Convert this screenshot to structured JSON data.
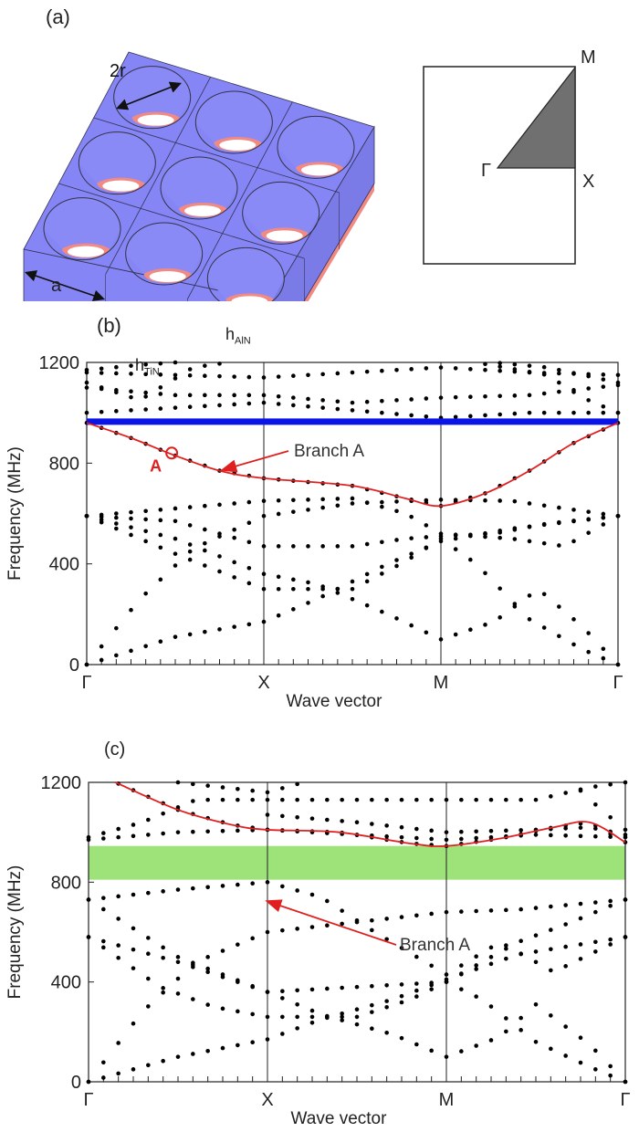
{
  "panel_labels": {
    "a": "(a)",
    "b": "(b)",
    "c": "(c)"
  },
  "schematic": {
    "dim_2r": "2r",
    "dim_a": "a",
    "dim_h_tin": "h",
    "dim_h_tin_sub": "TiN",
    "dim_h_aln": "h",
    "dim_h_aln_sub": "AlN",
    "colors": {
      "aln": "#8585f5",
      "tin": "#f08a82"
    }
  },
  "brillouin_zone": {
    "gamma": "Γ",
    "x": "X",
    "m": "M",
    "fill": "#707070"
  },
  "chart_data": [
    {
      "id": "b",
      "type": "scatter",
      "xlabel": "Wave vector",
      "ylabel": "Frequency (MHz)",
      "ylim": [
        0,
        1200
      ],
      "yticks": [
        0,
        400,
        800,
        1200
      ],
      "xticks": [
        "Γ",
        "X",
        "M",
        "Γ"
      ],
      "x_path_points": [
        0,
        1,
        2,
        3
      ],
      "bandgap_line": {
        "frequency": 965,
        "color": "#0a14e6"
      },
      "branch": {
        "label": "Branch A",
        "color": "#e02020",
        "points": [
          [
            0,
            960
          ],
          [
            0.25,
            900
          ],
          [
            0.5,
            830
          ],
          [
            0.75,
            770
          ],
          [
            1,
            740
          ],
          [
            1.5,
            710
          ],
          [
            1.8,
            660
          ],
          [
            2,
            630
          ],
          [
            2.25,
            680
          ],
          [
            2.5,
            770
          ],
          [
            2.75,
            880
          ],
          [
            3,
            960
          ]
        ]
      },
      "marker": {
        "label": "A",
        "k": 0.48,
        "frequency": 840
      },
      "bands": [
        [
          [
            0,
            0
          ],
          [
            0.5,
            110
          ],
          [
            1,
            170
          ],
          [
            1.3,
            260
          ],
          [
            1.7,
            400
          ],
          [
            2,
            490
          ],
          [
            2.4,
            540
          ],
          [
            3,
            590
          ]
        ],
        [
          [
            0,
            0
          ],
          [
            0.3,
            260
          ],
          [
            0.6,
            460
          ],
          [
            1,
            590
          ],
          [
            1.5,
            640
          ],
          [
            2,
            655
          ],
          [
            2.4,
            650
          ],
          [
            2.7,
            620
          ],
          [
            3,
            590
          ]
        ],
        [
          [
            0,
            590
          ],
          [
            0.5,
            500
          ],
          [
            1,
            360
          ],
          [
            1.3,
            320
          ],
          [
            1.7,
            200
          ],
          [
            2,
            100
          ],
          [
            2.3,
            170
          ],
          [
            2.55,
            300
          ],
          [
            2.8,
            150
          ],
          [
            3,
            0
          ]
        ],
        [
          [
            0,
            590
          ],
          [
            0.5,
            440
          ],
          [
            1,
            300
          ],
          [
            1.5,
            300
          ],
          [
            1.8,
            410
          ],
          [
            2,
            500
          ],
          [
            2.2,
            400
          ],
          [
            2.5,
            180
          ],
          [
            2.8,
            60
          ],
          [
            3,
            0
          ]
        ],
        [
          [
            0,
            590
          ],
          [
            0.5,
            620
          ],
          [
            1,
            650
          ],
          [
            1.5,
            660
          ],
          [
            1.8,
            600
          ],
          [
            2,
            520
          ],
          [
            2.4,
            500
          ],
          [
            2.7,
            470
          ],
          [
            3,
            590
          ]
        ],
        [
          [
            0,
            590
          ],
          [
            0.5,
            570
          ],
          [
            1,
            470
          ],
          [
            1.5,
            470
          ],
          [
            1.8,
            500
          ],
          [
            2,
            510
          ],
          [
            2.3,
            520
          ],
          [
            2.6,
            560
          ],
          [
            3,
            590
          ]
        ],
        [
          [
            0,
            1000
          ],
          [
            0.5,
            1020
          ],
          [
            1,
            1040
          ],
          [
            1.5,
            1010
          ],
          [
            2,
            980
          ],
          [
            2.5,
            1000
          ],
          [
            3,
            1000
          ]
        ],
        [
          [
            0,
            1100
          ],
          [
            0.5,
            1070
          ],
          [
            1,
            1070
          ],
          [
            1.5,
            1040
          ],
          [
            2,
            1060
          ],
          [
            2.5,
            1070
          ],
          [
            3,
            1110
          ]
        ],
        [
          [
            0,
            1160
          ],
          [
            0.5,
            1150
          ],
          [
            1,
            1140
          ],
          [
            1.5,
            1160
          ],
          [
            2,
            1180
          ],
          [
            2.5,
            1160
          ],
          [
            3,
            1150
          ]
        ],
        [
          [
            0,
            1120
          ],
          [
            0.3,
            1050
          ],
          [
            0.6,
            1180
          ],
          [
            0.8,
            1200
          ]
        ],
        [
          [
            0,
            1170
          ],
          [
            0.3,
            1190
          ],
          [
            0.5,
            1200
          ]
        ],
        [
          [
            2.2,
            1200
          ],
          [
            2.6,
            1150
          ],
          [
            2.8,
            1060
          ],
          [
            3,
            1000
          ]
        ],
        [
          [
            2.3,
            1200
          ],
          [
            2.6,
            1180
          ],
          [
            3,
            1120
          ]
        ]
      ]
    },
    {
      "id": "c",
      "type": "scatter",
      "xlabel": "Wave vector",
      "ylabel": "Frequency (MHz)",
      "ylim": [
        0,
        1200
      ],
      "yticks": [
        0,
        400,
        800,
        1200
      ],
      "xticks": [
        "Γ",
        "X",
        "M",
        "Γ"
      ],
      "x_path_points": [
        0,
        1,
        2,
        3
      ],
      "bandgap": {
        "from": 810,
        "to": 945,
        "color": "#9de37a"
      },
      "branch": {
        "label": "Branch A",
        "color": "#e02020",
        "points": [
          [
            0.15,
            1200
          ],
          [
            0.5,
            1090
          ],
          [
            0.8,
            1030
          ],
          [
            1,
            1010
          ],
          [
            1.4,
            1000
          ],
          [
            1.8,
            955
          ],
          [
            2,
            945
          ],
          [
            2.3,
            975
          ],
          [
            2.6,
            1020
          ],
          [
            2.8,
            1040
          ],
          [
            3,
            960
          ]
        ]
      },
      "bands": [
        [
          [
            0,
            0
          ],
          [
            0.5,
            100
          ],
          [
            1,
            170
          ],
          [
            1.3,
            250
          ],
          [
            1.7,
            330
          ],
          [
            2,
            410
          ],
          [
            2.4,
            510
          ],
          [
            3,
            580
          ]
        ],
        [
          [
            0,
            0
          ],
          [
            0.3,
            280
          ],
          [
            0.6,
            480
          ],
          [
            1,
            600
          ],
          [
            1.5,
            640
          ],
          [
            2,
            680
          ],
          [
            2.4,
            690
          ],
          [
            3,
            730
          ]
        ],
        [
          [
            0,
            580
          ],
          [
            0.5,
            480
          ],
          [
            1,
            360
          ],
          [
            1.3,
            270
          ],
          [
            1.7,
            190
          ],
          [
            2,
            100
          ],
          [
            2.3,
            180
          ],
          [
            2.5,
            310
          ],
          [
            2.8,
            150
          ],
          [
            3,
            0
          ]
        ],
        [
          [
            0,
            730
          ],
          [
            0.5,
            500
          ],
          [
            1,
            360
          ],
          [
            1.5,
            380
          ],
          [
            2,
            400
          ],
          [
            2.2,
            330
          ],
          [
            2.5,
            160
          ],
          [
            2.8,
            60
          ],
          [
            3,
            0
          ]
        ],
        [
          [
            0,
            730
          ],
          [
            0.5,
            770
          ],
          [
            1,
            800
          ],
          [
            1.3,
            740
          ],
          [
            1.6,
            600
          ],
          [
            2,
            430
          ],
          [
            2.3,
            560
          ],
          [
            2.6,
            440
          ],
          [
            3,
            580
          ]
        ],
        [
          [
            0,
            580
          ],
          [
            0.4,
            380
          ],
          [
            0.7,
            300
          ],
          [
            1,
            260
          ],
          [
            1.5,
            260
          ],
          [
            1.8,
            330
          ],
          [
            2,
            400
          ],
          [
            2.4,
            560
          ],
          [
            2.7,
            640
          ],
          [
            3,
            730
          ]
        ],
        [
          [
            0,
            970
          ],
          [
            0.5,
            1000
          ],
          [
            1,
            1010
          ],
          [
            1.5,
            990
          ],
          [
            2,
            970
          ],
          [
            2.5,
            990
          ],
          [
            3,
            980
          ]
        ],
        [
          [
            0,
            980
          ],
          [
            0.3,
            1040
          ],
          [
            0.6,
            1130
          ],
          [
            1,
            1130
          ],
          [
            1.5,
            1130
          ],
          [
            2,
            1130
          ],
          [
            2.5,
            1130
          ],
          [
            2.8,
            1180
          ],
          [
            3,
            1200
          ]
        ],
        [
          [
            0.5,
            1200
          ],
          [
            1,
            1160
          ],
          [
            1.2,
            1200
          ]
        ],
        [
          [
            1,
            1070
          ],
          [
            1.5,
            1040
          ],
          [
            2,
            1000
          ],
          [
            2.5,
            1010
          ],
          [
            2.8,
            1020
          ],
          [
            3,
            990
          ]
        ],
        [
          [
            2.7,
            1200
          ],
          [
            2.85,
            1100
          ],
          [
            3,
            1010
          ]
        ]
      ]
    }
  ]
}
